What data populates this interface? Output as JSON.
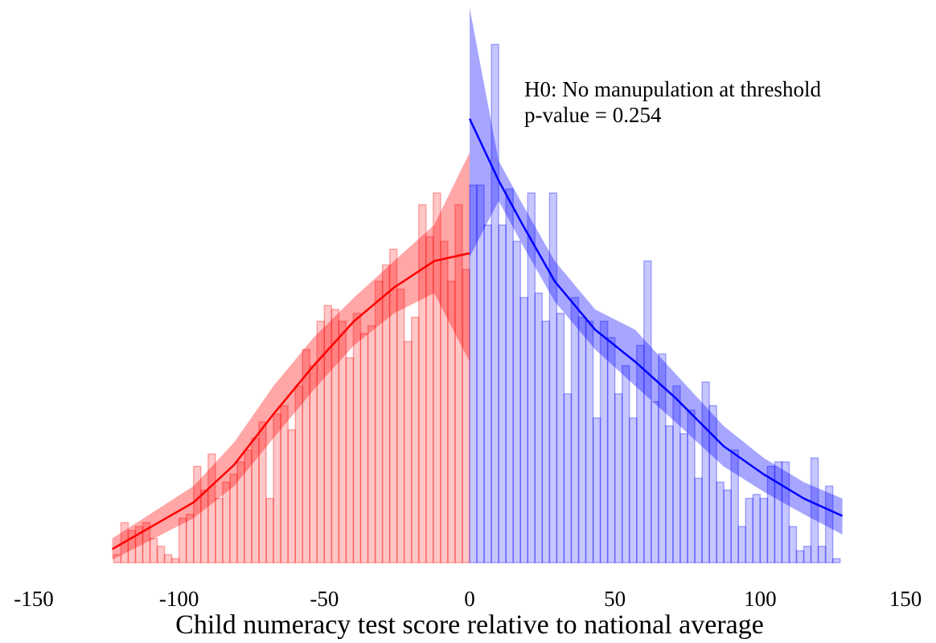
{
  "chart_data": {
    "type": "histogram",
    "xlabel": "Child numeracy test score relative to national average",
    "annotations": [
      "H0: No manupulation at threshold",
      "p-value = 0.254"
    ],
    "xlim": [
      -150,
      150
    ],
    "xticks": [
      -150,
      -100,
      -50,
      0,
      50,
      100,
      150
    ],
    "ylim": [
      0,
      100
    ],
    "threshold": 0,
    "colors": [
      "#ff0000",
      "#0000ff"
    ],
    "bins": [
      -122.5,
      -120,
      -117.5,
      -115,
      -112.5,
      -110,
      -107.5,
      -105,
      -102.5,
      -100,
      -97.5,
      -95,
      -92.5,
      -90,
      -87.5,
      -85,
      -82.5,
      -80,
      -77.5,
      -75,
      -72.5,
      -70,
      -67.5,
      -65,
      -62.5,
      -60,
      -57.5,
      -55,
      -52.5,
      -50,
      -47.5,
      -45,
      -42.5,
      -40,
      -37.5,
      -35,
      -32.5,
      -30,
      -27.5,
      -25,
      -22.5,
      -20,
      -17.5,
      -15,
      -12.5,
      -10,
      -7.5,
      -5,
      -2.5,
      0,
      2.5,
      5,
      7.5,
      10,
      12.5,
      15,
      17.5,
      20,
      22.5,
      25,
      27.5,
      30,
      32.5,
      35,
      37.5,
      40,
      42.5,
      45,
      47.5,
      50,
      52.5,
      55,
      57.5,
      60,
      62.5,
      65,
      67.5,
      70,
      72.5,
      75,
      77.5,
      80,
      82.5,
      85,
      87.5,
      90,
      92.5,
      95,
      97.5,
      100,
      102.5,
      105,
      107.5,
      110,
      112.5,
      115,
      117.5,
      120,
      122.5,
      125,
      127.5
    ],
    "values": [
      1.4,
      7.1,
      5.7,
      6.4,
      7.1,
      4.3,
      2.9,
      1.4,
      0.7,
      7.9,
      8.6,
      17.1,
      12.9,
      19.3,
      11.4,
      14.3,
      15.7,
      17.9,
      20,
      22.1,
      25,
      11.4,
      26.4,
      27.9,
      23.6,
      31.4,
      37.9,
      35,
      42.9,
      45.7,
      45,
      42.9,
      36.4,
      44.3,
      40.7,
      42.1,
      50,
      52.9,
      55.7,
      48.6,
      39.3,
      43.6,
      63.6,
      57.9,
      65.7,
      57.1,
      50,
      63.6,
      52.1,
      67.1,
      67.1,
      60,
      92.1,
      60,
      66.4,
      57.1,
      47.1,
      65.7,
      47.9,
      42.9,
      65.7,
      44.3,
      30,
      47.1,
      43.6,
      42.9,
      25.7,
      42.9,
      40,
      30,
      35,
      25.7,
      38.6,
      53.6,
      28.6,
      37.1,
      24.3,
      31.4,
      22.9,
      27.1,
      15,
      32.1,
      27.9,
      14.3,
      12.9,
      20,
      6.4,
      11.4,
      12.1,
      11.4,
      17.1,
      17.9,
      17.9,
      6.4,
      2.1,
      2.9,
      18.6,
      2.9,
      13.6,
      0.7
    ],
    "fits": [
      {
        "color": "#ff0000",
        "x": [
          -123,
          -95,
          -81,
          -67.5,
          -53.7,
          -39.8,
          -26,
          -12.2,
          0
        ],
        "values": [
          2.4,
          10.7,
          17.4,
          26.4,
          35,
          42.9,
          48.9,
          53.6,
          55
        ],
        "lower": [
          0.5,
          7.9,
          13.6,
          22.1,
          30.7,
          38.6,
          44.3,
          47.9,
          35.7
        ],
        "upper": [
          4.3,
          13.6,
          21.4,
          31.4,
          40,
          47.1,
          53.6,
          60,
          72.9
        ]
      },
      {
        "color": "#0000ff",
        "x": [
          0,
          10,
          18.3,
          29.3,
          43.2,
          57,
          70.8,
          87.4,
          101.2,
          115,
          128.3
        ],
        "values": [
          78.9,
          67.9,
          60,
          50,
          41.4,
          35.7,
          29.3,
          20.7,
          15.7,
          11.4,
          8.3
        ],
        "lower": [
          54.3,
          64.3,
          56.4,
          46.4,
          37.9,
          31.4,
          25,
          17.1,
          12.6,
          8.6,
          5
        ],
        "upper": [
          98.6,
          71.4,
          63.6,
          53.6,
          45,
          41.4,
          33.6,
          24.3,
          18.6,
          14.3,
          11.4
        ]
      }
    ]
  }
}
